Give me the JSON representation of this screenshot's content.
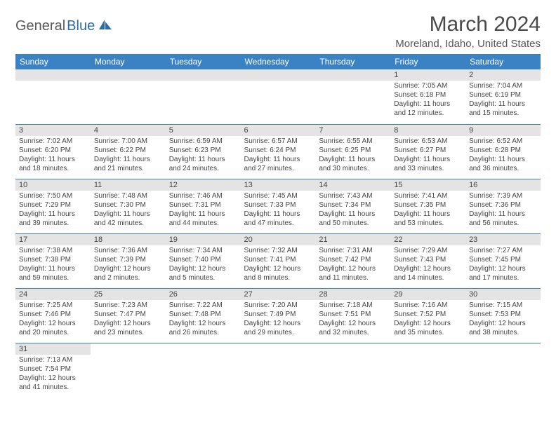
{
  "logo": {
    "text1": "General",
    "text2": "Blue"
  },
  "title": "March 2024",
  "location": "Moreland, Idaho, United States",
  "colors": {
    "header_bg": "#3b82c4",
    "header_text": "#ffffff",
    "daynum_bg": "#e4e4e4",
    "border": "#3b82c4",
    "logo_gray": "#5a5a5a",
    "logo_blue": "#2e6ca8"
  },
  "day_headers": [
    "Sunday",
    "Monday",
    "Tuesday",
    "Wednesday",
    "Thursday",
    "Friday",
    "Saturday"
  ],
  "weeks": [
    [
      null,
      null,
      null,
      null,
      null,
      {
        "n": "1",
        "sr": "Sunrise: 7:05 AM",
        "ss": "Sunset: 6:18 PM",
        "dl1": "Daylight: 11 hours",
        "dl2": "and 12 minutes."
      },
      {
        "n": "2",
        "sr": "Sunrise: 7:04 AM",
        "ss": "Sunset: 6:19 PM",
        "dl1": "Daylight: 11 hours",
        "dl2": "and 15 minutes."
      }
    ],
    [
      {
        "n": "3",
        "sr": "Sunrise: 7:02 AM",
        "ss": "Sunset: 6:20 PM",
        "dl1": "Daylight: 11 hours",
        "dl2": "and 18 minutes."
      },
      {
        "n": "4",
        "sr": "Sunrise: 7:00 AM",
        "ss": "Sunset: 6:22 PM",
        "dl1": "Daylight: 11 hours",
        "dl2": "and 21 minutes."
      },
      {
        "n": "5",
        "sr": "Sunrise: 6:59 AM",
        "ss": "Sunset: 6:23 PM",
        "dl1": "Daylight: 11 hours",
        "dl2": "and 24 minutes."
      },
      {
        "n": "6",
        "sr": "Sunrise: 6:57 AM",
        "ss": "Sunset: 6:24 PM",
        "dl1": "Daylight: 11 hours",
        "dl2": "and 27 minutes."
      },
      {
        "n": "7",
        "sr": "Sunrise: 6:55 AM",
        "ss": "Sunset: 6:25 PM",
        "dl1": "Daylight: 11 hours",
        "dl2": "and 30 minutes."
      },
      {
        "n": "8",
        "sr": "Sunrise: 6:53 AM",
        "ss": "Sunset: 6:27 PM",
        "dl1": "Daylight: 11 hours",
        "dl2": "and 33 minutes."
      },
      {
        "n": "9",
        "sr": "Sunrise: 6:52 AM",
        "ss": "Sunset: 6:28 PM",
        "dl1": "Daylight: 11 hours",
        "dl2": "and 36 minutes."
      }
    ],
    [
      {
        "n": "10",
        "sr": "Sunrise: 7:50 AM",
        "ss": "Sunset: 7:29 PM",
        "dl1": "Daylight: 11 hours",
        "dl2": "and 39 minutes."
      },
      {
        "n": "11",
        "sr": "Sunrise: 7:48 AM",
        "ss": "Sunset: 7:30 PM",
        "dl1": "Daylight: 11 hours",
        "dl2": "and 42 minutes."
      },
      {
        "n": "12",
        "sr": "Sunrise: 7:46 AM",
        "ss": "Sunset: 7:31 PM",
        "dl1": "Daylight: 11 hours",
        "dl2": "and 44 minutes."
      },
      {
        "n": "13",
        "sr": "Sunrise: 7:45 AM",
        "ss": "Sunset: 7:33 PM",
        "dl1": "Daylight: 11 hours",
        "dl2": "and 47 minutes."
      },
      {
        "n": "14",
        "sr": "Sunrise: 7:43 AM",
        "ss": "Sunset: 7:34 PM",
        "dl1": "Daylight: 11 hours",
        "dl2": "and 50 minutes."
      },
      {
        "n": "15",
        "sr": "Sunrise: 7:41 AM",
        "ss": "Sunset: 7:35 PM",
        "dl1": "Daylight: 11 hours",
        "dl2": "and 53 minutes."
      },
      {
        "n": "16",
        "sr": "Sunrise: 7:39 AM",
        "ss": "Sunset: 7:36 PM",
        "dl1": "Daylight: 11 hours",
        "dl2": "and 56 minutes."
      }
    ],
    [
      {
        "n": "17",
        "sr": "Sunrise: 7:38 AM",
        "ss": "Sunset: 7:38 PM",
        "dl1": "Daylight: 11 hours",
        "dl2": "and 59 minutes."
      },
      {
        "n": "18",
        "sr": "Sunrise: 7:36 AM",
        "ss": "Sunset: 7:39 PM",
        "dl1": "Daylight: 12 hours",
        "dl2": "and 2 minutes."
      },
      {
        "n": "19",
        "sr": "Sunrise: 7:34 AM",
        "ss": "Sunset: 7:40 PM",
        "dl1": "Daylight: 12 hours",
        "dl2": "and 5 minutes."
      },
      {
        "n": "20",
        "sr": "Sunrise: 7:32 AM",
        "ss": "Sunset: 7:41 PM",
        "dl1": "Daylight: 12 hours",
        "dl2": "and 8 minutes."
      },
      {
        "n": "21",
        "sr": "Sunrise: 7:31 AM",
        "ss": "Sunset: 7:42 PM",
        "dl1": "Daylight: 12 hours",
        "dl2": "and 11 minutes."
      },
      {
        "n": "22",
        "sr": "Sunrise: 7:29 AM",
        "ss": "Sunset: 7:43 PM",
        "dl1": "Daylight: 12 hours",
        "dl2": "and 14 minutes."
      },
      {
        "n": "23",
        "sr": "Sunrise: 7:27 AM",
        "ss": "Sunset: 7:45 PM",
        "dl1": "Daylight: 12 hours",
        "dl2": "and 17 minutes."
      }
    ],
    [
      {
        "n": "24",
        "sr": "Sunrise: 7:25 AM",
        "ss": "Sunset: 7:46 PM",
        "dl1": "Daylight: 12 hours",
        "dl2": "and 20 minutes."
      },
      {
        "n": "25",
        "sr": "Sunrise: 7:23 AM",
        "ss": "Sunset: 7:47 PM",
        "dl1": "Daylight: 12 hours",
        "dl2": "and 23 minutes."
      },
      {
        "n": "26",
        "sr": "Sunrise: 7:22 AM",
        "ss": "Sunset: 7:48 PM",
        "dl1": "Daylight: 12 hours",
        "dl2": "and 26 minutes."
      },
      {
        "n": "27",
        "sr": "Sunrise: 7:20 AM",
        "ss": "Sunset: 7:49 PM",
        "dl1": "Daylight: 12 hours",
        "dl2": "and 29 minutes."
      },
      {
        "n": "28",
        "sr": "Sunrise: 7:18 AM",
        "ss": "Sunset: 7:51 PM",
        "dl1": "Daylight: 12 hours",
        "dl2": "and 32 minutes."
      },
      {
        "n": "29",
        "sr": "Sunrise: 7:16 AM",
        "ss": "Sunset: 7:52 PM",
        "dl1": "Daylight: 12 hours",
        "dl2": "and 35 minutes."
      },
      {
        "n": "30",
        "sr": "Sunrise: 7:15 AM",
        "ss": "Sunset: 7:53 PM",
        "dl1": "Daylight: 12 hours",
        "dl2": "and 38 minutes."
      }
    ],
    [
      {
        "n": "31",
        "sr": "Sunrise: 7:13 AM",
        "ss": "Sunset: 7:54 PM",
        "dl1": "Daylight: 12 hours",
        "dl2": "and 41 minutes."
      },
      null,
      null,
      null,
      null,
      null,
      null
    ]
  ]
}
